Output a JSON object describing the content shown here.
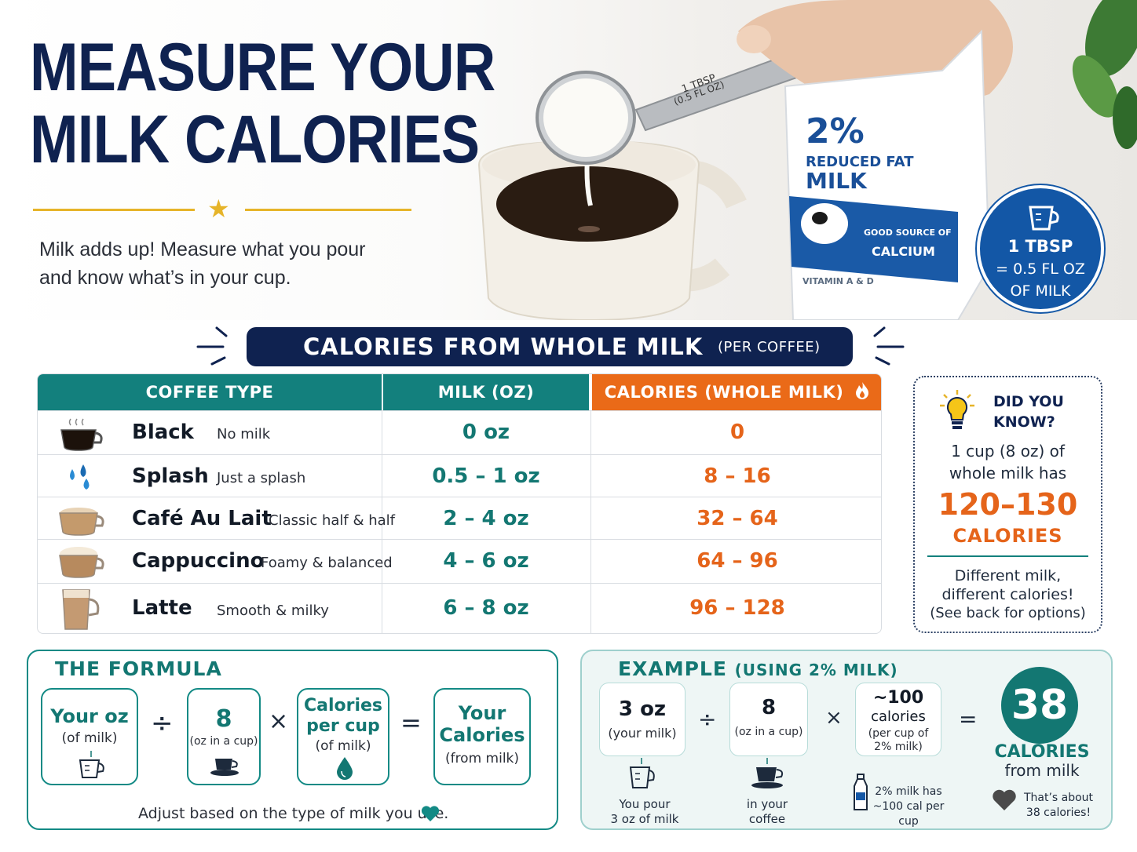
{
  "hero": {
    "title_line1": "MEASURE YOUR",
    "title_line2": "MILK CALORIES",
    "tagline_line1": "Milk adds up! Measure what you pour",
    "tagline_line2": "and know what’s in your cup.",
    "spoon_label_line1": "1 TBSP",
    "spoon_label_line2": "(0.5 FL OZ)",
    "carton": {
      "percent": "2%",
      "line1": "REDUCED FAT",
      "line2": "MILK",
      "calcium_line1": "GOOD SOURCE OF",
      "calcium_line2": "CALCIUM",
      "vitamin": "VITAMIN A & D"
    },
    "badge": {
      "line1": "1 TBSP",
      "line2": "= 0.5 FL OZ",
      "line3": "OF MILK"
    }
  },
  "section": {
    "title": "CALORIES FROM WHOLE MILK",
    "subtitle": "(PER COFFEE)"
  },
  "table": {
    "headers": {
      "type": "COFFEE TYPE",
      "milk": "MILK (OZ)",
      "calories": "CALORIES (WHOLE MILK)"
    },
    "rows": [
      {
        "name": "Black",
        "desc": "No milk",
        "oz": "0 oz",
        "cal": "0",
        "icon": "black-coffee-cup-icon"
      },
      {
        "name": "Splash",
        "desc": "Just a splash",
        "oz": "0.5 – 1 oz",
        "cal": "8 – 16",
        "icon": "milk-drops-icon"
      },
      {
        "name": "Café Au Lait",
        "desc": "Classic half & half",
        "oz": "2 – 4 oz",
        "cal": "32 – 64",
        "icon": "cafe-au-lait-cup-icon"
      },
      {
        "name": "Cappuccino",
        "desc": "Foamy & balanced",
        "oz": "4 – 6 oz",
        "cal": "64 – 96",
        "icon": "cappuccino-cup-icon"
      },
      {
        "name": "Latte",
        "desc": "Smooth & milky",
        "oz": "6 – 8 oz",
        "cal": "96 – 128",
        "icon": "latte-glass-icon"
      }
    ]
  },
  "did_you_know": {
    "heading_line1": "DID YOU",
    "heading_line2": "KNOW?",
    "text_line1": "1 cup (8 oz) of",
    "text_line2": "whole milk has",
    "big": "120–130",
    "calories": "CALORIES",
    "bottom_line1": "Different milk,",
    "bottom_line2": "different calories!",
    "bottom_line3": "(See back for options)"
  },
  "formula": {
    "title": "THE FORMULA",
    "box1": {
      "big": "Your oz",
      "small": "(of milk)"
    },
    "op1": "÷",
    "box2": {
      "big": "8",
      "small": "(oz in a cup)"
    },
    "op2": "×",
    "box3": {
      "big_line1": "Calories",
      "big_line2": "per cup",
      "small": "(of milk)"
    },
    "op3": "=",
    "box4": {
      "big_line1": "Your",
      "big_line2": "Calories",
      "small": "(from milk)"
    },
    "note": "Adjust based on the type of milk you use."
  },
  "example": {
    "title": "EXAMPLE",
    "title_paren": "(USING 2% MILK)",
    "box1": {
      "big": "3 oz",
      "small": "(your milk)"
    },
    "op1": "÷",
    "box2": {
      "big": "8",
      "small": "(oz in a cup)"
    },
    "op2": "×",
    "box3": {
      "big_line1": "~100",
      "big_line2": "calories",
      "small_line1": "(per cup of",
      "small_line2": "2% milk)"
    },
    "op3": "=",
    "result": "38",
    "result_label": "CALORIES",
    "result_sub": "from milk",
    "cap1_line1": "You pour",
    "cap1_line2": "3 oz of milk",
    "cap2_line1": "in your",
    "cap2_line2": "coffee",
    "cap3_line1": "2% milk has",
    "cap3_line2": "~100 cal per cup",
    "cap4_line1": "That’s about",
    "cap4_line2": "38 calories!"
  },
  "colors": {
    "navy": "#0f2250",
    "teal": "#13807d",
    "orange": "#ea6a18",
    "gold": "#e6b429",
    "blue": "#1357a6"
  }
}
